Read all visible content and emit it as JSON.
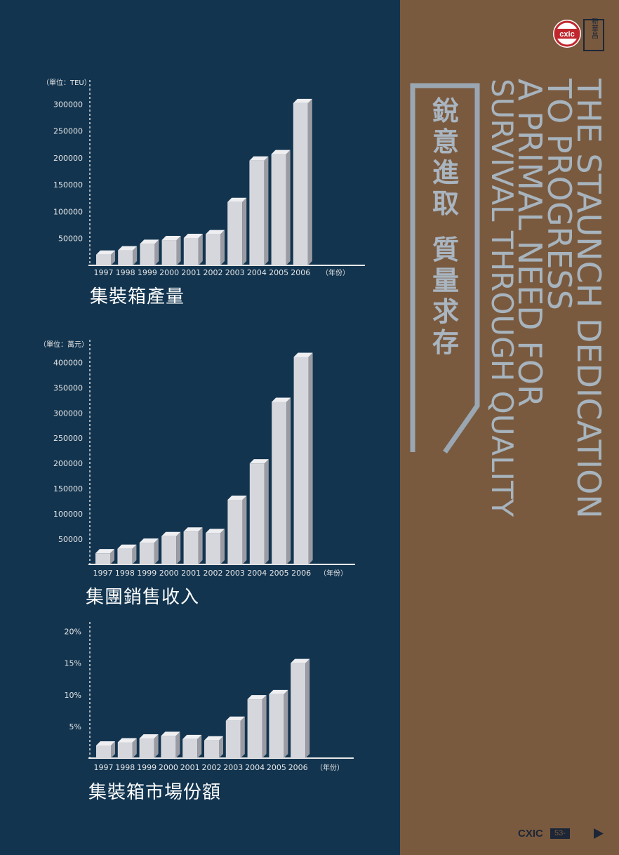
{
  "chart_data": [
    {
      "type": "bar",
      "title": "集裝箱產量",
      "unit_label": "（單位：TEU）",
      "xunit_label": "（年份）",
      "categories": [
        "1997",
        "1998",
        "1999",
        "2000",
        "2001",
        "2002",
        "2003",
        "2004",
        "2005",
        "2006"
      ],
      "values": [
        20000,
        28000,
        40000,
        47000,
        51000,
        58000,
        118000,
        195000,
        207000,
        302000
      ],
      "yticks": [
        "50000",
        "100000",
        "150000",
        "200000",
        "250000",
        "300000"
      ],
      "ytick_values": [
        50000,
        100000,
        150000,
        200000,
        250000,
        300000
      ],
      "ylim": [
        0,
        345000
      ]
    },
    {
      "type": "bar",
      "title": "集團銷售收入",
      "unit_label": "（單位：萬元）",
      "xunit_label": "（年份）",
      "categories": [
        "1997",
        "1998",
        "1999",
        "2000",
        "2001",
        "2002",
        "2003",
        "2004",
        "2005",
        "2006"
      ],
      "values": [
        22000,
        31000,
        43000,
        56000,
        65000,
        62000,
        128000,
        200000,
        322000,
        411000
      ],
      "yticks": [
        "50000",
        "100000",
        "150000",
        "200000",
        "250000",
        "300000",
        "350000",
        "400000"
      ],
      "ytick_values": [
        50000,
        100000,
        150000,
        200000,
        250000,
        300000,
        350000,
        400000
      ],
      "ylim": [
        0,
        445000
      ]
    },
    {
      "type": "bar",
      "title": "集裝箱市場份額",
      "unit_label": "",
      "xunit_label": "（年份）",
      "categories": [
        "1997",
        "1998",
        "1999",
        "2000",
        "2001",
        "2002",
        "2003",
        "2004",
        "2005",
        "2006"
      ],
      "values": [
        2.0,
        2.5,
        3.1,
        3.5,
        3.0,
        2.8,
        5.9,
        9.3,
        10.1,
        15.0
      ],
      "yticks": [
        "5%",
        "10%",
        "15%",
        "20%"
      ],
      "ytick_values": [
        5,
        10,
        15,
        20
      ],
      "ylim": [
        0,
        21.5
      ]
    }
  ],
  "right_panel": {
    "cn_title": [
      "銳",
      "意",
      "進",
      "取",
      "",
      "質",
      "量",
      "求",
      "存"
    ],
    "en_title_lines": [
      "THE STAUNCH DEDICATION",
      "TO PROGRESS",
      "A PRIMAL NEED FOR",
      "SURVIVAL THROUGH QUALITY"
    ],
    "logo_text": "cxic",
    "logo_cn": "新華昌"
  },
  "footer": {
    "brand": "CXIC",
    "pages": "53-54"
  },
  "colors": {
    "left_bg": "#12344f",
    "right_bg": "#7a5a3f",
    "bar_front": "#d6d7dc",
    "bar_side": "#9b9ca3",
    "bar_top": "#efeff2",
    "title_frame": "#9aa7b2"
  }
}
